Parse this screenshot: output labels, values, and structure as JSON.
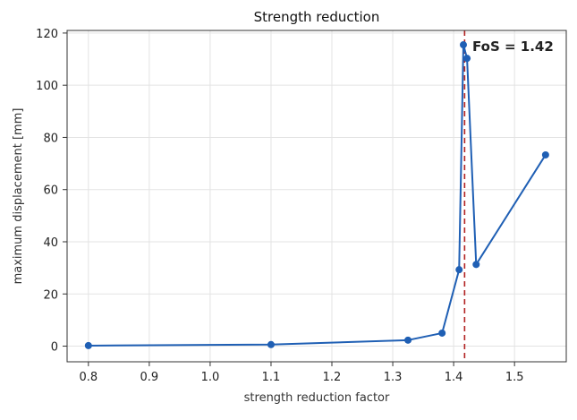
{
  "chart_data": {
    "type": "line",
    "title": "Strength reduction",
    "xlabel": "strength reduction factor",
    "ylabel": "maximum displacement [mm]",
    "xlim": [
      0.765,
      1.585
    ],
    "ylim": [
      -6,
      121
    ],
    "xticks": [
      0.8,
      0.9,
      1.0,
      1.1,
      1.2,
      1.3,
      1.4,
      1.5
    ],
    "xtick_labels": [
      "0.8",
      "0.9",
      "1.0",
      "1.1",
      "1.2",
      "1.3",
      "1.4",
      "1.5"
    ],
    "yticks": [
      0,
      20,
      40,
      60,
      80,
      100,
      120
    ],
    "ytick_labels": [
      "0",
      "20",
      "40",
      "60",
      "80",
      "100",
      "120"
    ],
    "grid": true,
    "series": [
      {
        "color": "#1f5fb4",
        "points": [
          {
            "x": 0.8,
            "y": 0.2
          },
          {
            "x": 1.1,
            "y": 0.6
          },
          {
            "x": 1.325,
            "y": 2.3
          },
          {
            "x": 1.381,
            "y": 5.0
          },
          {
            "x": 1.409,
            "y": 29.3
          },
          {
            "x": 1.416,
            "y": 115.5
          },
          {
            "x": 1.422,
            "y": 110.3
          },
          {
            "x": 1.437,
            "y": 31.3
          },
          {
            "x": 1.551,
            "y": 73.3
          }
        ]
      }
    ],
    "annotations": [
      {
        "type": "vline",
        "x": 1.418,
        "color": "#b22222",
        "style": "dashed"
      },
      {
        "type": "text",
        "text": "FoS = 1.42",
        "color": "#c62828"
      }
    ]
  }
}
